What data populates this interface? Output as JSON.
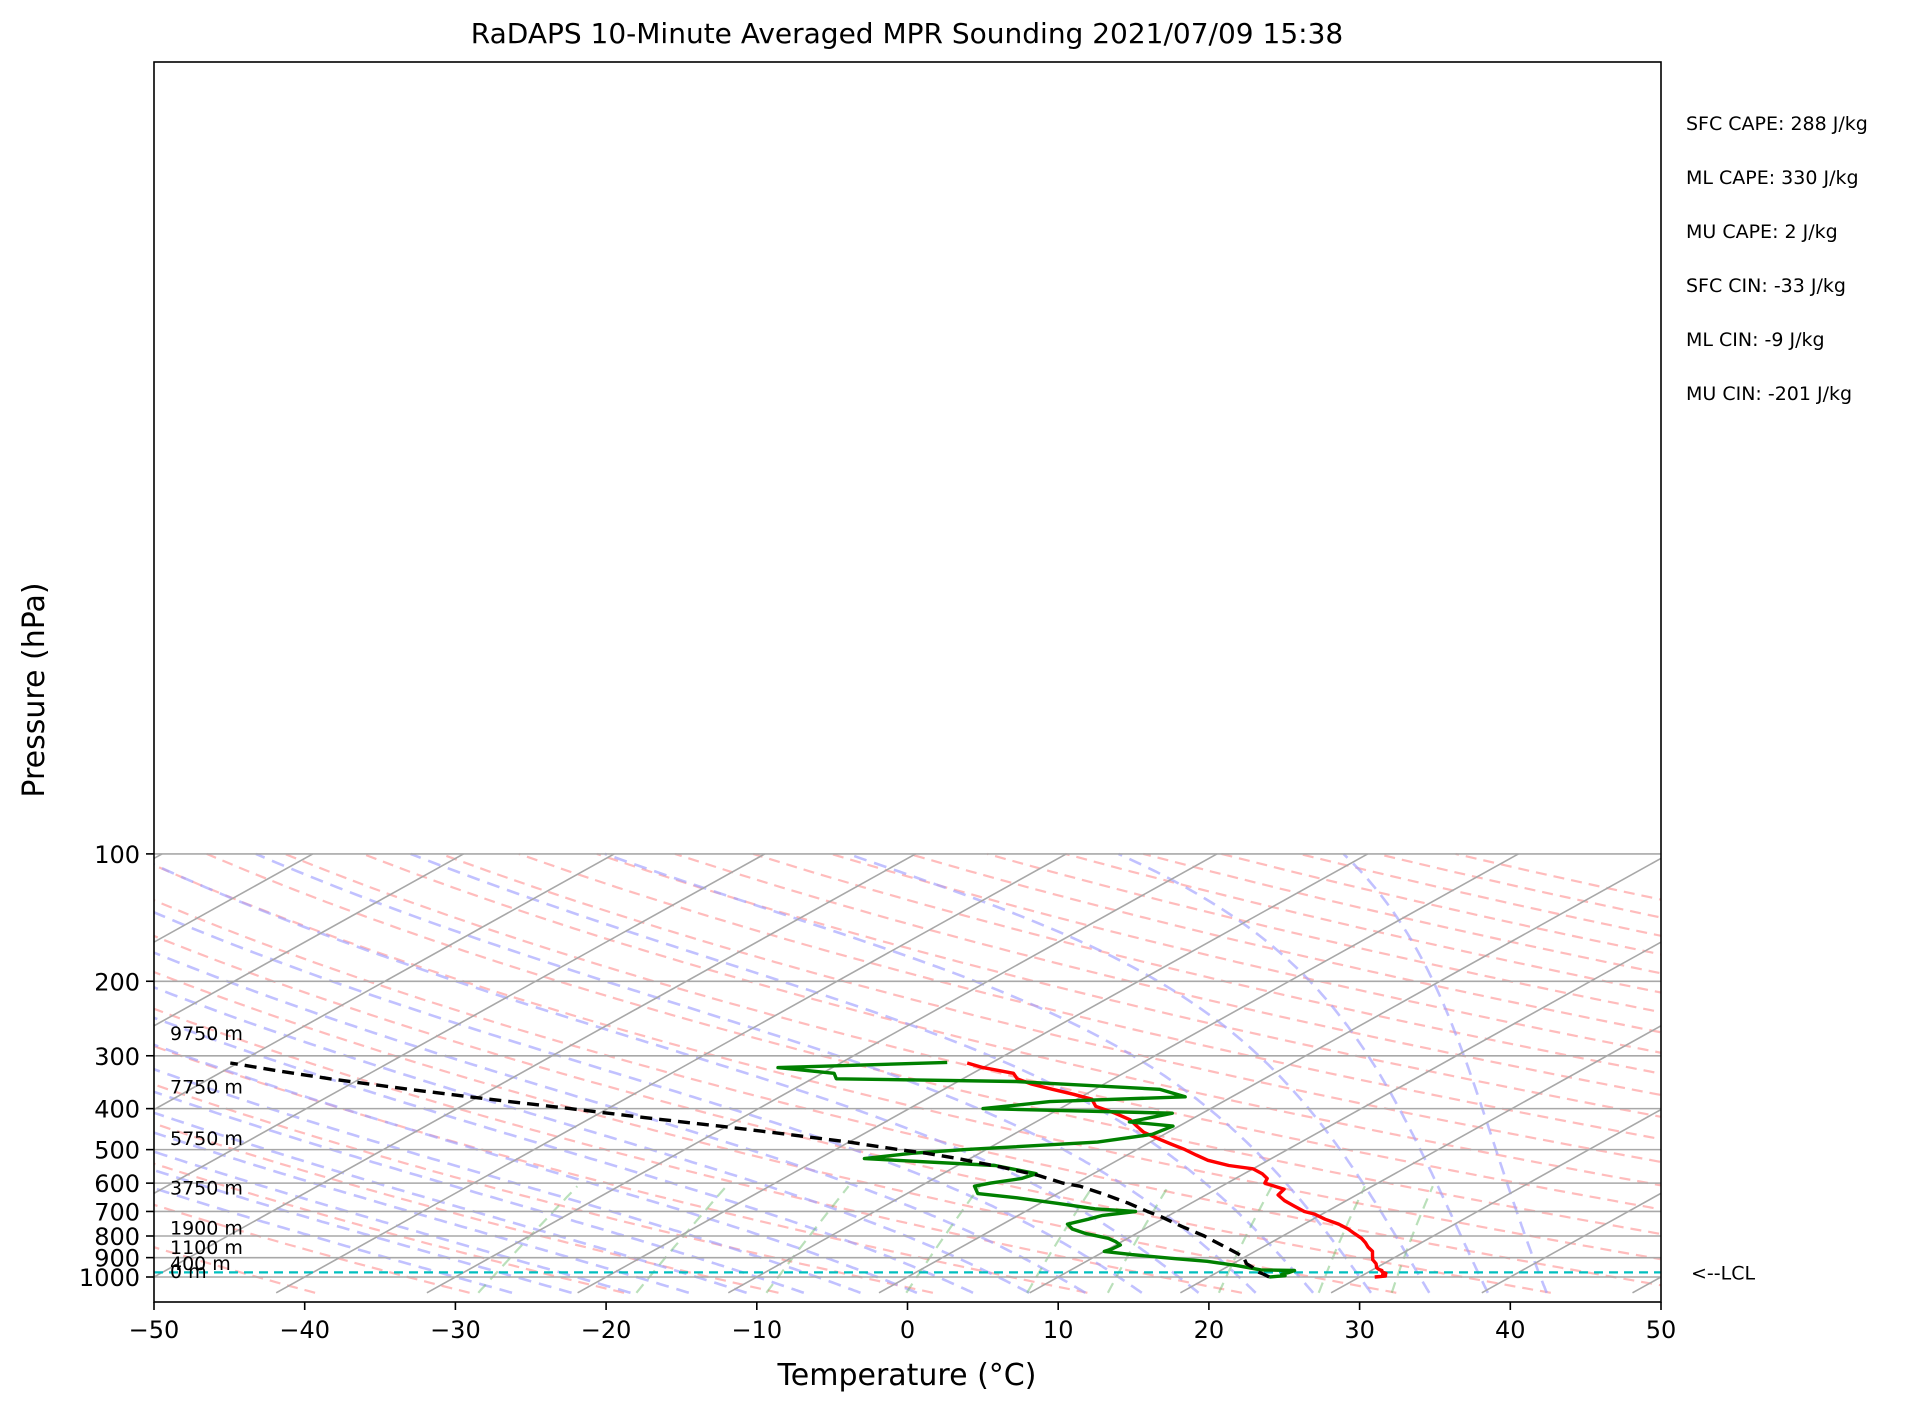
{
  "chart_data": {
    "type": "line",
    "title": "RaDAPS 10-Minute Averaged MPR Sounding 2021/07/09 15:38",
    "xlabel": "Temperature (°C)",
    "ylabel": "Pressure (hPa)",
    "xlim": [
      -50,
      50
    ],
    "ylim_pressure": [
      1050,
      100
    ],
    "y_scale": "log",
    "skew_t": true,
    "grid": true,
    "xticks": [
      "−50",
      "−40",
      "−30",
      "−20",
      "−10",
      "0",
      "10",
      "20",
      "30",
      "40",
      "50"
    ],
    "xtick_values": [
      -50,
      -40,
      -30,
      -20,
      -10,
      0,
      10,
      20,
      30,
      40,
      50
    ],
    "yticks": [
      "100",
      "200",
      "300",
      "400",
      "500",
      "600",
      "700",
      "800",
      "900",
      "1000"
    ],
    "ytick_values": [
      100,
      200,
      300,
      400,
      500,
      600,
      700,
      800,
      900,
      1000
    ],
    "height_labels": [
      {
        "text": "9750 m",
        "p": 275
      },
      {
        "text": "7750 m",
        "p": 368
      },
      {
        "text": "5750 m",
        "p": 488
      },
      {
        "text": "3750 m",
        "p": 638
      },
      {
        "text": "1900 m",
        "p": 793
      },
      {
        "text": "1100 m",
        "p": 883
      },
      {
        "text": "400 m",
        "p": 963
      },
      {
        "text": "0 m",
        "p": 1005
      }
    ],
    "lcl": {
      "label": "<--LCL",
      "p": 975,
      "color": "#00bfbf"
    },
    "stats": [
      "SFC CAPE: 288 J/kg",
      "ML CAPE: 330 J/kg",
      "MU CAPE: 2 J/kg",
      "SFC CIN: -33 J/kg",
      "ML CIN: -9 J/kg",
      "MU CIN: -201 J/kg"
    ],
    "series": [
      {
        "role": "temperature",
        "color": "#ff0000",
        "points": [
          [
            31,
            1000
          ],
          [
            31.6,
            995
          ],
          [
            31.5,
            990
          ],
          [
            31.2,
            985
          ],
          [
            31.3,
            980
          ],
          [
            31.0,
            975
          ],
          [
            30.8,
            970
          ],
          [
            30.7,
            965
          ],
          [
            30.4,
            960
          ],
          [
            30,
            950
          ],
          [
            29.5,
            930
          ],
          [
            28.8,
            910
          ],
          [
            28.3,
            890
          ],
          [
            27.8,
            870
          ],
          [
            27.0,
            850
          ],
          [
            26.3,
            830
          ],
          [
            25.5,
            810
          ],
          [
            24.5,
            790
          ],
          [
            23.5,
            770
          ],
          [
            22.3,
            750
          ],
          [
            20.8,
            730
          ],
          [
            19.5,
            710
          ],
          [
            18.5,
            700
          ],
          [
            17.2,
            680
          ],
          [
            15.9,
            660
          ],
          [
            14.8,
            640
          ],
          [
            14.5,
            620
          ],
          [
            12.5,
            600
          ],
          [
            12.1,
            585
          ],
          [
            11.2,
            570
          ],
          [
            10.0,
            555
          ],
          [
            8.0,
            545
          ],
          [
            6.0,
            530
          ],
          [
            4.6,
            515
          ],
          [
            3.2,
            500
          ],
          [
            1.6,
            485
          ],
          [
            0.0,
            470
          ],
          [
            -1.6,
            455
          ],
          [
            -2.8,
            440
          ],
          [
            -4.0,
            425
          ],
          [
            -5.8,
            410
          ],
          [
            -7.9,
            395
          ],
          [
            -9.0,
            380
          ],
          [
            -10.8,
            370
          ],
          [
            -12.8,
            360
          ],
          [
            -14.8,
            350
          ],
          [
            -16.4,
            340
          ],
          [
            -17.3,
            330
          ],
          [
            -20.0,
            320
          ],
          [
            -21.6,
            312
          ]
        ]
      },
      {
        "role": "dewpoint",
        "color": "#008000",
        "points": [
          [
            24,
            1000
          ],
          [
            24.9,
            993
          ],
          [
            24.5,
            985
          ],
          [
            24.8,
            975
          ],
          [
            24.9,
            965
          ],
          [
            22.6,
            962
          ],
          [
            20.5,
            940
          ],
          [
            18.0,
            918
          ],
          [
            15.6,
            905
          ],
          [
            12.2,
            885
          ],
          [
            10.0,
            870
          ],
          [
            10.2,
            860
          ],
          [
            10.3,
            840
          ],
          [
            9.6,
            825
          ],
          [
            8.7,
            810
          ],
          [
            6.7,
            790
          ],
          [
            5.2,
            770
          ],
          [
            4.3,
            750
          ],
          [
            5.1,
            730
          ],
          [
            5.6,
            715
          ],
          [
            7.3,
            700
          ],
          [
            4.3,
            690
          ],
          [
            1.2,
            670
          ],
          [
            -2.2,
            650
          ],
          [
            -5.3,
            635
          ],
          [
            -6.4,
            610
          ],
          [
            -5.7,
            600
          ],
          [
            -4.2,
            585
          ],
          [
            -3.8,
            570
          ],
          [
            -7.5,
            545
          ],
          [
            -17.0,
            525
          ],
          [
            -14.5,
            510
          ],
          [
            -11.4,
            500
          ],
          [
            -3.5,
            480
          ],
          [
            -0.8,
            460
          ],
          [
            -0.4,
            440
          ],
          [
            -3.8,
            430
          ],
          [
            -2.0,
            410
          ],
          [
            -15.1,
            400
          ],
          [
            -11.5,
            385
          ],
          [
            -3.1,
            375
          ],
          [
            -5.7,
            360
          ],
          [
            -16.2,
            345
          ],
          [
            -28.4,
            340
          ],
          [
            -29.2,
            330
          ],
          [
            -33.6,
            320
          ],
          [
            -23.0,
            311
          ]
        ]
      },
      {
        "role": "parcel-profile",
        "color": "#000000",
        "points": [
          [
            24,
            1000
          ],
          [
            23.3,
            985
          ],
          [
            22.5,
            970
          ],
          [
            21.8,
            950
          ],
          [
            20.9,
            930
          ],
          [
            20.0,
            900
          ],
          [
            19.1,
            880
          ],
          [
            17.0,
            840
          ],
          [
            14.8,
            800
          ],
          [
            12.2,
            760
          ],
          [
            9.6,
            720
          ],
          [
            8.1,
            700
          ],
          [
            5.9,
            670
          ],
          [
            3.4,
            640
          ],
          [
            0.6,
            610
          ],
          [
            -0.9,
            600
          ],
          [
            -3.5,
            575
          ],
          [
            -6.9,
            550
          ],
          [
            -10.8,
            525
          ],
          [
            -13.5,
            510
          ],
          [
            -15.8,
            500
          ],
          [
            -20.0,
            480
          ],
          [
            -25.0,
            460
          ],
          [
            -30.5,
            440
          ],
          [
            -36.5,
            420
          ],
          [
            -42.5,
            400
          ],
          [
            -49.0,
            380
          ],
          [
            -55.5,
            360
          ],
          [
            -62.0,
            340
          ],
          [
            -66.0,
            327
          ],
          [
            -70.5,
            312
          ]
        ]
      }
    ]
  }
}
